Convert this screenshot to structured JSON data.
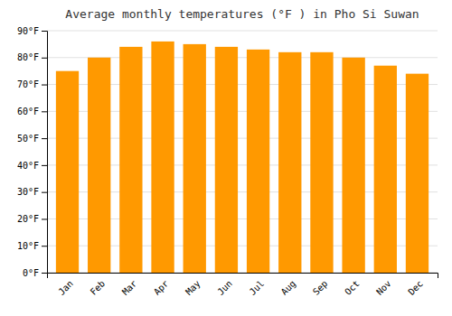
{
  "chart_data": {
    "type": "bar",
    "title": "Average monthly temperatures (°F ) in Pho Si Suwan",
    "categories": [
      "Jan",
      "Feb",
      "Mar",
      "Apr",
      "May",
      "Jun",
      "Jul",
      "Aug",
      "Sep",
      "Oct",
      "Nov",
      "Dec"
    ],
    "values": [
      75,
      80,
      84,
      86,
      85,
      84,
      83,
      82,
      82,
      80,
      77,
      74
    ],
    "color": "#FF9900",
    "ylim": [
      0,
      90
    ],
    "yticks": [
      {
        "value": 0,
        "label": "0°F"
      },
      {
        "value": 10,
        "label": "10°F"
      },
      {
        "value": 20,
        "label": "20°F"
      },
      {
        "value": 30,
        "label": "30°F"
      },
      {
        "value": 40,
        "label": "40°F"
      },
      {
        "value": 50,
        "label": "50°F"
      },
      {
        "value": 60,
        "label": "60°F"
      },
      {
        "value": 70,
        "label": "70°F"
      },
      {
        "value": 80,
        "label": "80°F"
      },
      {
        "value": 90,
        "label": "90°F"
      }
    ],
    "grid": true
  }
}
